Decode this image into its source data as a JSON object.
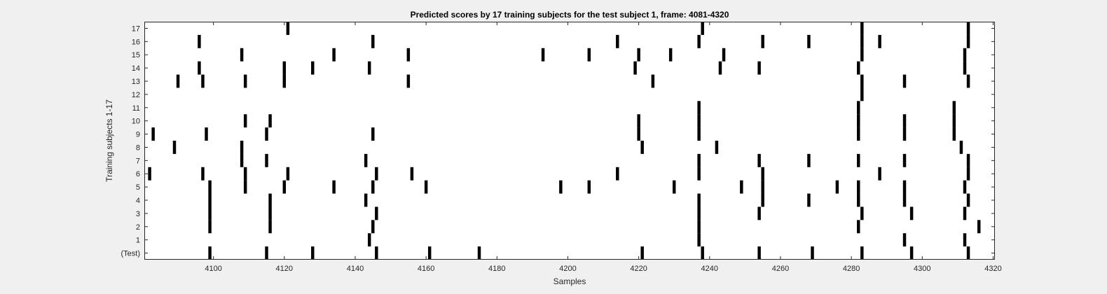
{
  "chart_data": {
    "type": "raster",
    "title": "Predicted scores by 17 training subjects for the test subject 1, frame: 4081-4320",
    "xlabel": "Samples",
    "ylabel": "Training subjects 1-17",
    "xlim": [
      4081,
      4320
    ],
    "xticks": [
      4100,
      4120,
      4140,
      4160,
      4180,
      4200,
      4220,
      4240,
      4260,
      4280,
      4300,
      4320
    ],
    "yticks": [
      "(Test)",
      "1",
      "2",
      "3",
      "4",
      "5",
      "6",
      "7",
      "8",
      "9",
      "10",
      "11",
      "12",
      "13",
      "14",
      "15",
      "16",
      "17"
    ],
    "grid": false,
    "rows": [
      {
        "label": "(Test)",
        "events": [
          4099,
          4115,
          4128,
          4146,
          4161,
          4175,
          4221,
          4238,
          4254,
          4269,
          4283,
          4297,
          4313
        ]
      },
      {
        "label": "1",
        "events": [
          4144,
          4237,
          4295,
          4312
        ]
      },
      {
        "label": "2",
        "events": [
          4099,
          4116,
          4145,
          4237,
          4282,
          4316
        ]
      },
      {
        "label": "3",
        "events": [
          4099,
          4116,
          4146,
          4237,
          4254,
          4283,
          4297,
          4312
        ]
      },
      {
        "label": "4",
        "events": [
          4099,
          4116,
          4143,
          4237,
          4255,
          4268,
          4282,
          4295,
          4313
        ]
      },
      {
        "label": "5",
        "events": [
          4099,
          4109,
          4120,
          4134,
          4145,
          4160,
          4198,
          4206,
          4230,
          4249,
          4255,
          4276,
          4282,
          4295,
          4312
        ]
      },
      {
        "label": "6",
        "events": [
          4082,
          4097,
          4109,
          4121,
          4146,
          4156,
          4214,
          4237,
          4255,
          4288,
          4313
        ]
      },
      {
        "label": "7",
        "events": [
          4108,
          4115,
          4143,
          4237,
          4254,
          4268,
          4282,
          4295,
          4313
        ]
      },
      {
        "label": "8",
        "events": [
          4089,
          4108,
          4221,
          4242,
          4311
        ]
      },
      {
        "label": "9",
        "events": [
          4083,
          4098,
          4115,
          4145,
          4220,
          4237,
          4282,
          4295,
          4309
        ]
      },
      {
        "label": "10",
        "events": [
          4109,
          4116,
          4220,
          4237,
          4282,
          4295,
          4309
        ]
      },
      {
        "label": "11",
        "events": [
          4237,
          4282,
          4309
        ]
      },
      {
        "label": "12",
        "events": [
          4283
        ]
      },
      {
        "label": "13",
        "events": [
          4090,
          4097,
          4109,
          4120,
          4155,
          4224,
          4283,
          4295,
          4313
        ]
      },
      {
        "label": "14",
        "events": [
          4096,
          4120,
          4128,
          4144,
          4219,
          4243,
          4254,
          4282,
          4312
        ]
      },
      {
        "label": "15",
        "events": [
          4108,
          4134,
          4155,
          4193,
          4206,
          4220,
          4229,
          4244,
          4283,
          4312
        ]
      },
      {
        "label": "16",
        "events": [
          4096,
          4145,
          4214,
          4237,
          4255,
          4268,
          4283,
          4288,
          4313
        ]
      },
      {
        "label": "17",
        "events": [
          4121,
          4238,
          4283,
          4313
        ]
      }
    ]
  }
}
